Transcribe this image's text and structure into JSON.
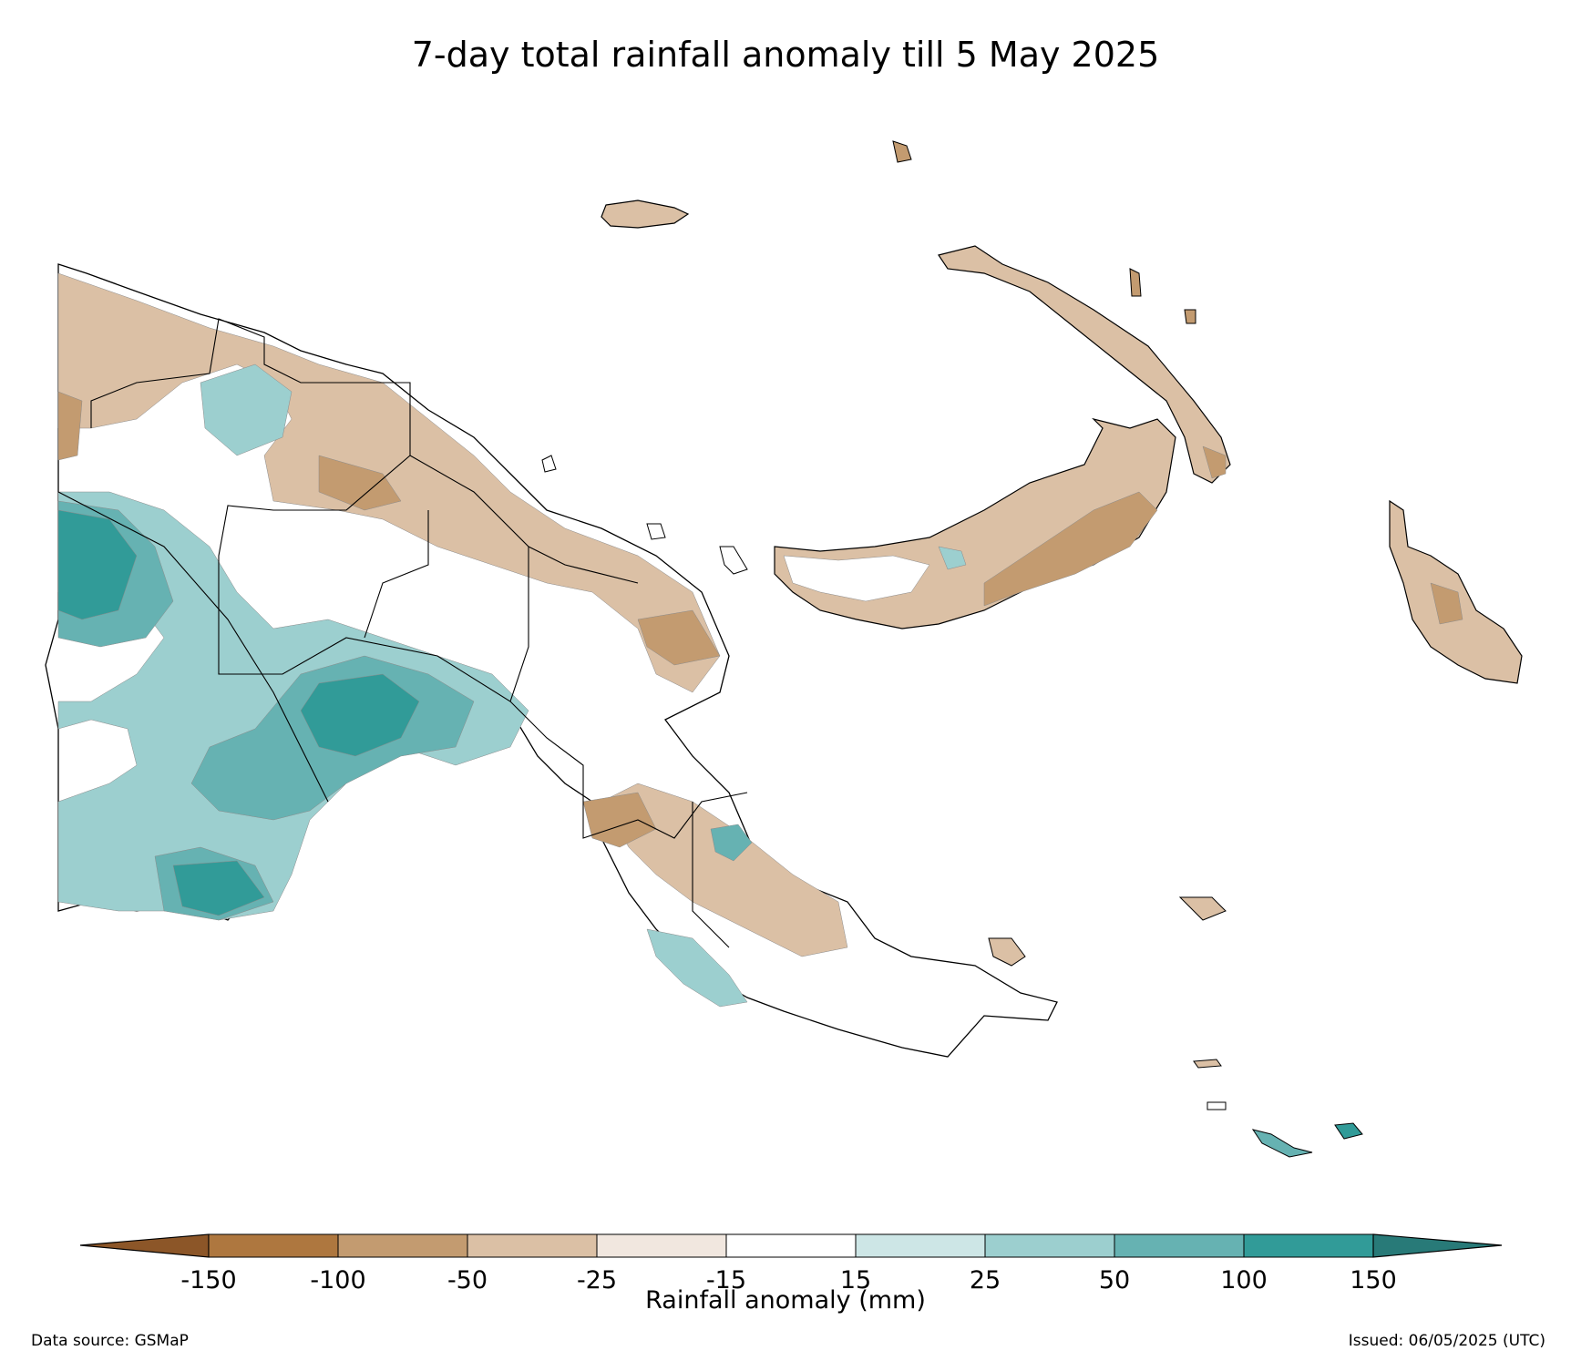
{
  "title": "7-day total rainfall anomaly till 5 May 2025",
  "colorbar": {
    "label": "Rainfall anomaly (mm)",
    "ticks": [
      "-150",
      "-100",
      "-50",
      "-25",
      "-15",
      "15",
      "25",
      "50",
      "100",
      "150"
    ],
    "colors": [
      "#8c5628",
      "#ae773f",
      "#c39b70",
      "#dbc0a5",
      "#f1e7df",
      "#ffffff",
      "#cde6e6",
      "#9ccfcf",
      "#66b2b2",
      "#319b98",
      "#287a78"
    ],
    "extend": "both"
  },
  "source": "Data source: GSMaP",
  "issued": "Issued: 06/05/2025 (UTC)"
}
